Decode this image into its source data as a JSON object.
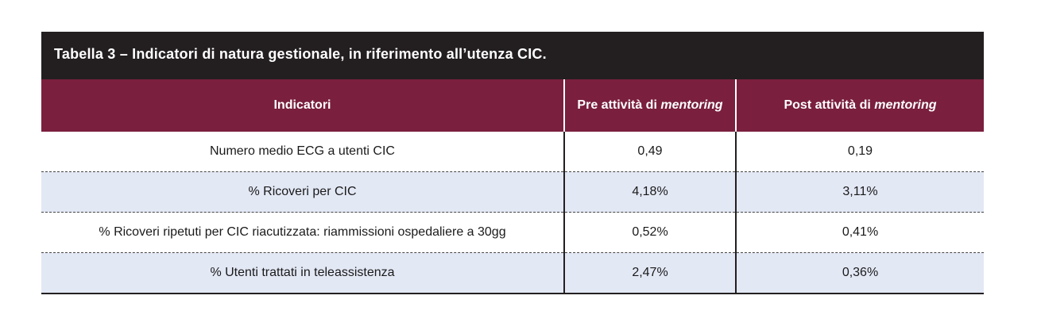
{
  "title": "Tabella 3 – Indicatori di natura gestionale, in riferimento all’utenza CIC.",
  "header": {
    "col1": "Indicatori",
    "col2_prefix": "Pre attività di ",
    "col2_em": "mentoring",
    "col3_prefix": "Post attività di ",
    "col3_em": "mentoring"
  },
  "rows": [
    {
      "indicator": "Numero medio ECG a utenti CIC",
      "pre": "0,49",
      "post": "0,19"
    },
    {
      "indicator": "% Ricoveri per CIC",
      "pre": "4,18%",
      "post": "3,11%"
    },
    {
      "indicator": "% Ricoveri ripetuti per CIC riacutizzata: riammissioni ospedaliere a 30gg",
      "pre": "0,52%",
      "post": "0,41%"
    },
    {
      "indicator": "% Utenti trattati in teleassistenza",
      "pre": "2,47%",
      "post": "0,36%"
    }
  ],
  "colors": {
    "title_bg": "#231f20",
    "header_bg": "#7a1f3d",
    "alt_row_bg": "#e3e8f5"
  }
}
